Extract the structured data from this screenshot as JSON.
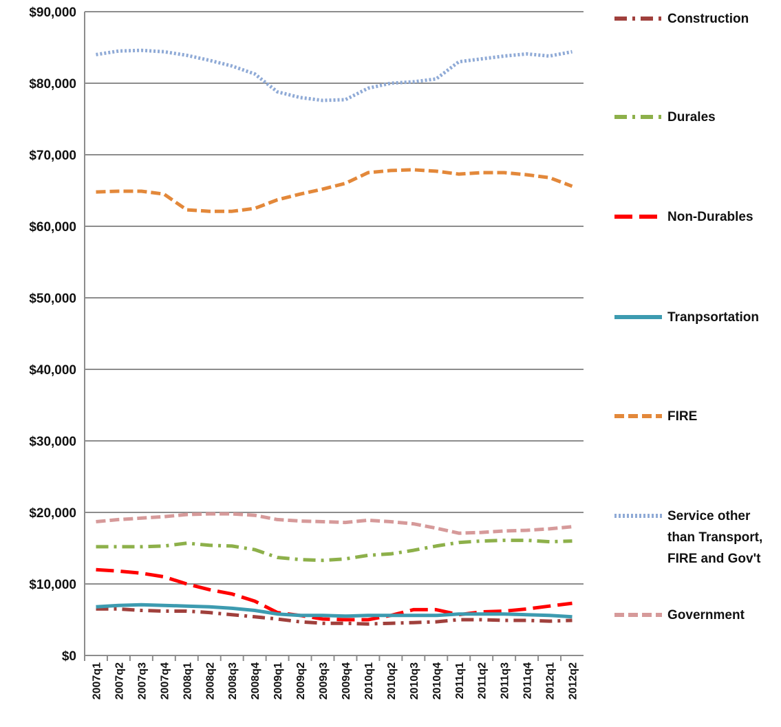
{
  "chart_data": {
    "type": "line",
    "categories": [
      "2007q1",
      "2007q2",
      "2007q3",
      "2007q4",
      "2008q1",
      "2008q2",
      "2008q3",
      "2008q4",
      "2009q1",
      "2009q2",
      "2009q3",
      "2009q4",
      "2010q1",
      "2010q2",
      "2010q3",
      "2010q4",
      "2011q1",
      "2011q2",
      "2011q3",
      "2011q4",
      "2012q1",
      "2012q2"
    ],
    "series": [
      {
        "name": "Construction",
        "color": "#a0403c",
        "dash": "dashdot",
        "values": [
          6500,
          6500,
          6300,
          6200,
          6200,
          6000,
          5700,
          5400,
          5100,
          4700,
          4500,
          4500,
          4400,
          4500,
          4600,
          4700,
          5000,
          5000,
          4900,
          4900,
          4800,
          4900
        ]
      },
      {
        "name": "Durales",
        "color": "#8db04a",
        "dash": "dashdot",
        "values": [
          15200,
          15200,
          15200,
          15300,
          15700,
          15400,
          15300,
          14800,
          13700,
          13400,
          13300,
          13500,
          14000,
          14200,
          14700,
          15300,
          15800,
          16000,
          16100,
          16100,
          15900,
          16000
        ]
      },
      {
        "name": "Non-Durables",
        "color": "#ff0000",
        "dash": "longdash",
        "values": [
          12000,
          11800,
          11500,
          11000,
          10000,
          9200,
          8600,
          7600,
          6000,
          5600,
          5100,
          5000,
          5000,
          5600,
          6400,
          6400,
          5700,
          6100,
          6200,
          6500,
          6900,
          7300
        ]
      },
      {
        "name": "Tranpsortation",
        "color": "#3d9bb0",
        "dash": "solid",
        "values": [
          6800,
          7000,
          7100,
          7000,
          6900,
          6800,
          6600,
          6300,
          5800,
          5600,
          5600,
          5500,
          5600,
          5600,
          5600,
          5600,
          5800,
          5800,
          5800,
          5700,
          5600,
          5400
        ]
      },
      {
        "name": "FIRE",
        "color": "#e3883a",
        "dash": "dash",
        "values": [
          64800,
          64900,
          64900,
          64500,
          62300,
          62100,
          62100,
          62500,
          63700,
          64500,
          65200,
          66000,
          67500,
          67800,
          67900,
          67700,
          67300,
          67500,
          67500,
          67200,
          66800,
          65600
        ]
      },
      {
        "name": "Service other than Transport, FIRE and Gov't",
        "color": "#8faad6",
        "dash": "dot",
        "values": [
          84000,
          84500,
          84600,
          84400,
          83900,
          83200,
          82400,
          81300,
          78800,
          78000,
          77600,
          77700,
          79300,
          80000,
          80200,
          80600,
          83000,
          83400,
          83800,
          84100,
          83800,
          84400
        ]
      },
      {
        "name": "Government",
        "color": "#d69a9a",
        "dash": "dash",
        "values": [
          18700,
          19000,
          19200,
          19400,
          19700,
          19800,
          19800,
          19600,
          19000,
          18800,
          18700,
          18600,
          18900,
          18700,
          18400,
          17800,
          17100,
          17200,
          17400,
          17500,
          17700,
          18000
        ]
      }
    ],
    "ylim": [
      0,
      90000
    ],
    "yticks": [
      {
        "value": 0,
        "label": "$0"
      },
      {
        "value": 10000,
        "label": "$10,000"
      },
      {
        "value": 20000,
        "label": "$20,000"
      },
      {
        "value": 30000,
        "label": "$30,000"
      },
      {
        "value": 40000,
        "label": "$40,000"
      },
      {
        "value": 50000,
        "label": "$50,000"
      },
      {
        "value": 60000,
        "label": "$60,000"
      },
      {
        "value": 70000,
        "label": "$70,000"
      },
      {
        "value": 80000,
        "label": "$80,000"
      },
      {
        "value": 90000,
        "label": "$90,000"
      }
    ],
    "grid": true,
    "legend": "right"
  }
}
